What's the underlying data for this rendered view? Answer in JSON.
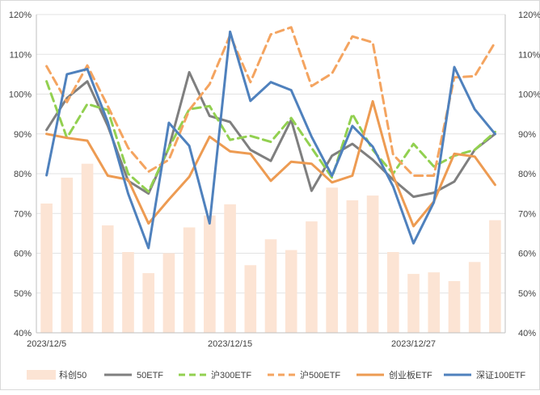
{
  "chart_data": {
    "type": "bar+line",
    "title": "",
    "xlabel": "",
    "ylabel": "",
    "ylim": [
      0.4,
      1.2
    ],
    "y_ticks": [
      "40%",
      "50%",
      "60%",
      "70%",
      "80%",
      "90%",
      "100%",
      "110%",
      "120%"
    ],
    "x_tick_labels": [
      "2023/12/5",
      "2023/12/15",
      "2023/12/27"
    ],
    "x_tick_positions": [
      0,
      9,
      18
    ],
    "n_points": 23,
    "grid": "horizontal",
    "legend_position": "bottom",
    "bar_series": {
      "name": "科创50",
      "color": "#fce4d4",
      "values": [
        0.725,
        0.79,
        0.825,
        0.67,
        0.603,
        0.55,
        0.6,
        0.665,
        0.695,
        0.723,
        0.57,
        0.635,
        0.608,
        0.68,
        0.765,
        0.733,
        0.745,
        0.603,
        0.548,
        0.552,
        0.53,
        0.578,
        0.683
      ]
    },
    "line_series": [
      {
        "name": "50ETF",
        "color": "#7f7f7f",
        "dash": "solid",
        "values": [
          0.91,
          0.99,
          1.032,
          0.92,
          0.782,
          0.75,
          0.865,
          1.055,
          0.945,
          0.93,
          0.86,
          0.832,
          0.935,
          0.757,
          0.845,
          0.875,
          0.835,
          0.785,
          0.742,
          0.752,
          0.78,
          0.86,
          0.9
        ]
      },
      {
        "name": "沪300ETF",
        "color": "#92d050",
        "dash": "dash",
        "values": [
          1.032,
          0.89,
          0.975,
          0.96,
          0.8,
          0.755,
          0.865,
          0.962,
          0.97,
          0.885,
          0.895,
          0.88,
          0.94,
          0.865,
          0.79,
          0.95,
          0.86,
          0.8,
          0.875,
          0.818,
          0.845,
          0.86,
          0.905
        ]
      },
      {
        "name": "沪500ETF",
        "color": "#f4a460",
        "dash": "dash",
        "values": [
          1.07,
          0.98,
          1.072,
          0.97,
          0.865,
          0.805,
          0.835,
          0.96,
          1.025,
          1.148,
          1.03,
          1.15,
          1.168,
          1.02,
          1.052,
          1.145,
          1.13,
          0.848,
          0.795,
          0.795,
          1.042,
          1.045,
          1.13
        ]
      },
      {
        "name": "创业板ETF",
        "color": "#ed9b52",
        "dash": "solid",
        "values": [
          0.9,
          0.89,
          0.883,
          0.795,
          0.785,
          0.675,
          0.735,
          0.792,
          0.893,
          0.856,
          0.85,
          0.782,
          0.83,
          0.825,
          0.778,
          0.795,
          0.982,
          0.795,
          0.668,
          0.73,
          0.85,
          0.843,
          0.772
        ]
      },
      {
        "name": "深证100ETF",
        "color": "#4f81bd",
        "dash": "solid",
        "values": [
          0.796,
          1.05,
          1.063,
          0.93,
          0.75,
          0.613,
          0.928,
          0.87,
          0.675,
          1.157,
          0.983,
          1.03,
          1.01,
          0.893,
          0.795,
          0.92,
          0.868,
          0.768,
          0.625,
          0.728,
          1.068,
          0.962,
          0.9
        ]
      }
    ]
  }
}
